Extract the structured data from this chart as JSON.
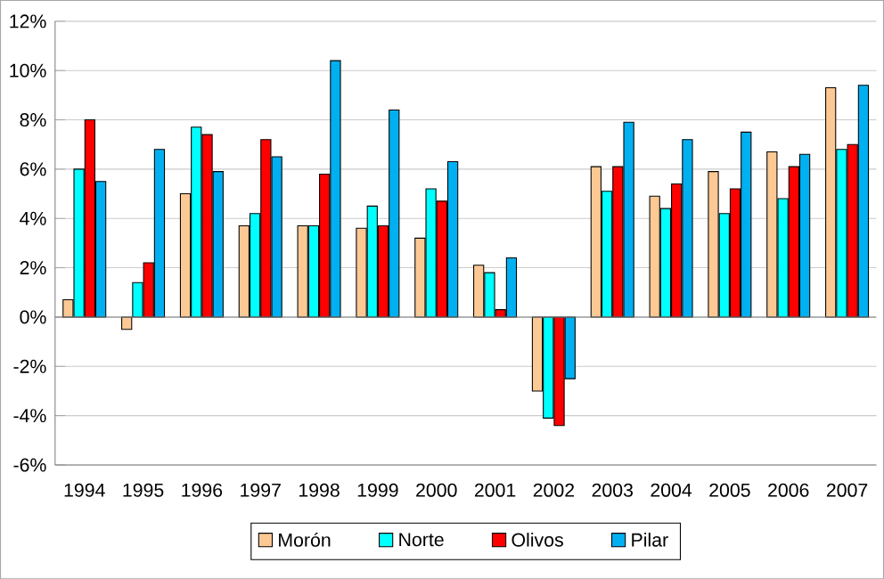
{
  "chart_data": {
    "type": "bar",
    "categories": [
      "1994",
      "1995",
      "1996",
      "1997",
      "1998",
      "1999",
      "2000",
      "2001",
      "2002",
      "2003",
      "2004",
      "2005",
      "2006",
      "2007"
    ],
    "series": [
      {
        "name": "Morón",
        "color": "#fcc995",
        "values": [
          0.7,
          -0.5,
          5.0,
          3.7,
          3.7,
          3.6,
          3.2,
          2.1,
          -3.0,
          6.1,
          4.9,
          5.9,
          6.7,
          9.3
        ]
      },
      {
        "name": "Norte",
        "color": "#00ffff",
        "values": [
          6.0,
          1.4,
          7.7,
          4.2,
          3.7,
          4.5,
          5.2,
          1.8,
          -4.1,
          5.1,
          4.4,
          4.2,
          4.8,
          6.8
        ]
      },
      {
        "name": "Olivos",
        "color": "#ff0000",
        "values": [
          8.0,
          2.2,
          7.4,
          7.2,
          5.8,
          3.7,
          4.7,
          0.3,
          -4.4,
          6.1,
          5.4,
          5.2,
          6.1,
          7.0
        ]
      },
      {
        "name": "Pilar",
        "color": "#00b0f0",
        "values": [
          5.5,
          6.8,
          5.9,
          6.5,
          10.4,
          8.4,
          6.3,
          2.4,
          -2.5,
          7.9,
          7.2,
          7.5,
          6.6,
          9.4
        ]
      }
    ],
    "ylim": [
      -6,
      12
    ],
    "yticks": [
      {
        "value": -6,
        "label": "-6%"
      },
      {
        "value": -4,
        "label": "-4%"
      },
      {
        "value": -2,
        "label": "-2%"
      },
      {
        "value": 0,
        "label": "0%"
      },
      {
        "value": 2,
        "label": "2%"
      },
      {
        "value": 4,
        "label": "4%"
      },
      {
        "value": 6,
        "label": "6%"
      },
      {
        "value": 8,
        "label": "8%"
      },
      {
        "value": 10,
        "label": "10%"
      },
      {
        "value": 12,
        "label": "12%"
      }
    ],
    "grid": "y",
    "legend": "bottom"
  }
}
